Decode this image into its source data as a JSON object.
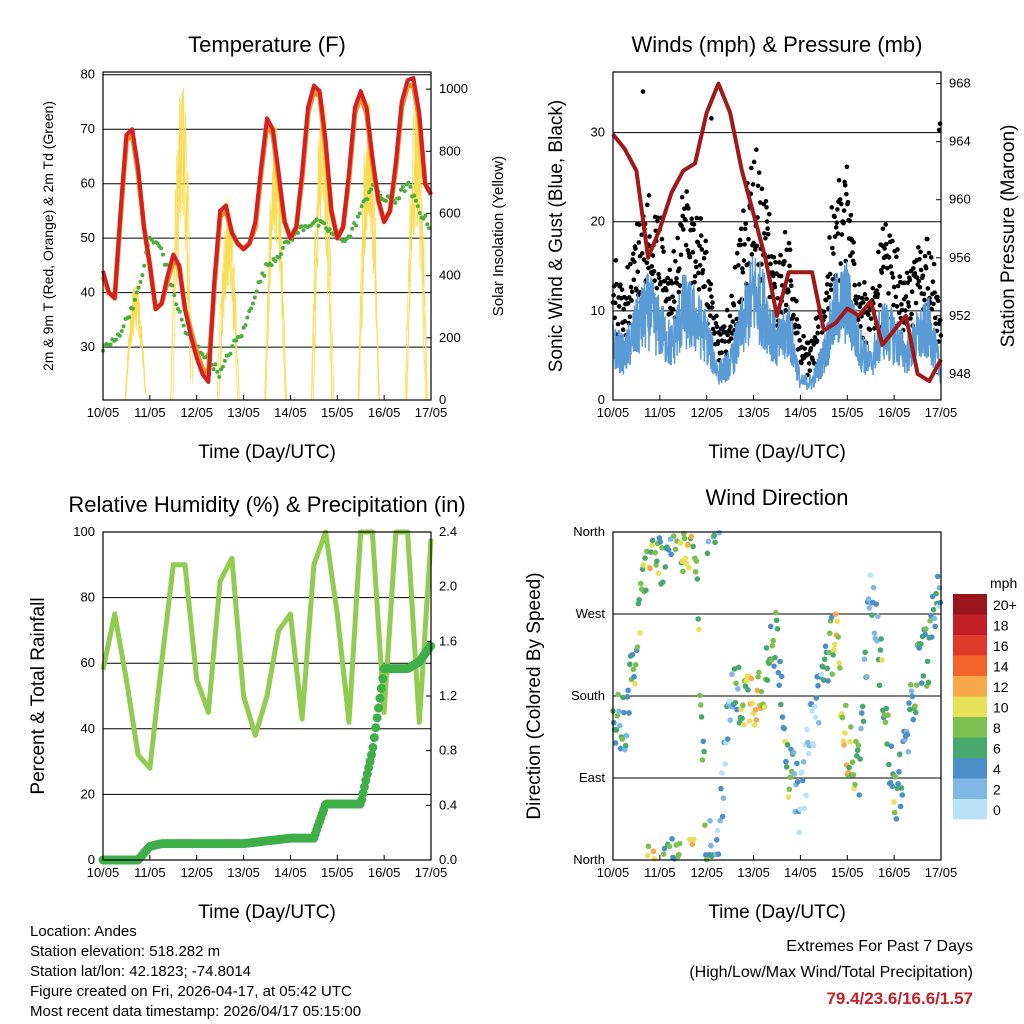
{
  "footer": {
    "location": "Location: Andes",
    "elevation": "Station elevation: 518.282 m",
    "latlon": "Station lat/lon: 42.1823; -74.8014",
    "created": "Figure created on Fri, 2026-04-17, at 05:42 UTC",
    "recent": "Most recent data timestamp: 2026/04/17 05:15:00",
    "extremes_title": "Extremes For Past 7 Days",
    "extremes_sub": "(High/Low/Max Wind/Total Precipitation)",
    "extremes_values": "79.4/23.6/16.6/1.57",
    "extremes_color": "#c8202a"
  },
  "chart_data": [
    {
      "type": "line",
      "title": "Temperature (F)",
      "xlabel": "Time (Day/UTC)",
      "ylabel": "2m & 9m T (Red, Orange) & 2m Td (Green)",
      "y2label": "Solar Insolation (Yellow)",
      "xticks": [
        "10/05",
        "11/05",
        "12/05",
        "13/05",
        "14/05",
        "15/05",
        "16/05",
        "17/05"
      ],
      "xlim": [
        0,
        7
      ],
      "ylim": [
        20.3,
        80.5
      ],
      "yticks": [
        30,
        40,
        50,
        60,
        70,
        80
      ],
      "y2lim": [
        0,
        1055
      ],
      "y2ticks": [
        0,
        200,
        400,
        600,
        800,
        1000
      ],
      "series": [
        {
          "name": "2m T",
          "color": "#d42020",
          "dt": 0.125,
          "values": [
            44,
            40,
            39,
            55,
            69,
            70,
            63,
            52,
            45,
            37,
            38,
            43,
            47,
            45,
            37,
            32,
            28,
            25,
            23.6,
            42,
            55,
            56,
            51,
            49,
            48,
            49,
            53,
            63,
            72,
            70,
            62,
            53,
            50,
            52,
            62,
            74,
            78,
            77,
            68,
            55,
            50,
            52,
            62,
            74,
            77,
            74,
            65,
            57,
            53,
            55,
            64,
            75,
            79,
            79.4,
            73,
            60,
            58
          ]
        },
        {
          "name": "9m T",
          "color": "#f08a24",
          "dt": 0.125,
          "values": [
            43,
            40,
            39,
            54,
            68,
            69,
            62,
            52,
            45,
            37,
            38,
            42,
            46,
            45,
            37,
            33,
            29,
            26,
            25,
            41,
            54,
            55,
            51,
            49,
            48,
            49,
            52,
            62,
            71,
            69,
            61,
            53,
            50,
            52,
            61,
            73,
            77,
            76,
            67,
            55,
            50,
            52,
            61,
            73,
            76,
            73,
            64,
            57,
            53,
            55,
            63,
            74,
            78,
            78,
            72,
            60,
            58
          ]
        },
        {
          "name": "2m Td",
          "color": "#4aae3c",
          "dt": 0.25,
          "values": [
            30,
            31,
            35,
            40,
            50,
            48,
            40,
            33,
            30,
            28,
            25,
            30,
            33,
            40,
            45,
            47,
            50,
            52,
            53,
            52,
            50,
            50,
            55,
            60,
            57,
            57,
            60,
            55,
            52,
            57
          ]
        },
        {
          "name": "Solar Insolation",
          "color": "#f7dc50",
          "axis": "right",
          "daily_peaks": [
            400,
            1050,
            650,
            900,
            1000,
            1000,
            1000
          ]
        }
      ]
    },
    {
      "type": "scatter",
      "title": "Winds (mph) & Pressure (mb)",
      "xlabel": "Time (Day/UTC)",
      "ylabel": "Sonic Wind & Gust (Blue, Black)",
      "y2label": "Station Pressure (Maroon)",
      "xticks": [
        "10/05",
        "11/05",
        "12/05",
        "13/05",
        "14/05",
        "15/05",
        "16/05",
        "17/05"
      ],
      "xlim": [
        0,
        7
      ],
      "ylim": [
        0,
        36.8
      ],
      "yticks": [
        0,
        10,
        20,
        30
      ],
      "y2lim": [
        946.2,
        968.8
      ],
      "y2ticks": [
        948,
        952,
        956,
        960,
        964,
        968
      ],
      "series": [
        {
          "name": "Sonic Wind",
          "color": "#5b9bd5",
          "dt": 0.25,
          "values": [
            6,
            5,
            8,
            10,
            8,
            6,
            10,
            9,
            7,
            3,
            4,
            8,
            12,
            10,
            6,
            8,
            2,
            2,
            5,
            10,
            11,
            6,
            4,
            8,
            7,
            5,
            7,
            8,
            3
          ]
        },
        {
          "name": "Gust",
          "color": "#000000",
          "derived_from": "Sonic Wind"
        },
        {
          "name": "Station Pressure",
          "color": "#a01818",
          "axis": "right",
          "dt": 0.25,
          "values": [
            964.5,
            963.5,
            962,
            956,
            958,
            960.5,
            962,
            962.5,
            966,
            968,
            966,
            962,
            959,
            956,
            952,
            955,
            955,
            955,
            951,
            951.5,
            952.5,
            952,
            953,
            950,
            951,
            952,
            948,
            947.5,
            949
          ]
        }
      ]
    },
    {
      "type": "line",
      "title": "Relative Humidity (%) & Precipitation (in)",
      "xlabel": "Time (Day/UTC)",
      "ylabel": "Percent & Total Rainfall",
      "xticks": [
        "10/05",
        "11/05",
        "12/05",
        "13/05",
        "14/05",
        "15/05",
        "16/05",
        "17/05"
      ],
      "xlim": [
        0,
        7
      ],
      "ylim": [
        0,
        100
      ],
      "yticks": [
        0,
        20,
        40,
        60,
        80,
        100
      ],
      "y2lim": [
        0,
        2.4
      ],
      "y2ticks": [
        "0.0",
        "0.4",
        "0.8",
        "1.2",
        "1.6",
        "2.0",
        "2.4"
      ],
      "series": [
        {
          "name": "Relative Humidity",
          "color": "#8fcc4f",
          "dt": 0.25,
          "values": [
            58,
            75,
            55,
            32,
            28,
            60,
            90,
            90,
            55,
            45,
            85,
            92,
            50,
            38,
            50,
            70,
            75,
            43,
            90,
            100,
            75,
            42,
            100,
            100,
            45,
            100,
            100,
            42,
            98
          ]
        },
        {
          "name": "Total Precipitation",
          "color": "#3fae49",
          "axis": "right",
          "dt": 0.25,
          "values": [
            0,
            0,
            0,
            0,
            0.1,
            0.12,
            0.12,
            0.12,
            0.12,
            0.12,
            0.12,
            0.12,
            0.12,
            0.13,
            0.14,
            0.15,
            0.16,
            0.16,
            0.16,
            0.41,
            0.41,
            0.41,
            0.41,
            0.8,
            1.4,
            1.4,
            1.4,
            1.45,
            1.57
          ]
        }
      ]
    },
    {
      "type": "scatter",
      "title": "Wind Direction",
      "xlabel": "Time (Day/UTC)",
      "ylabel": "Direction (Colored By Speed)",
      "xticks": [
        "10/05",
        "11/05",
        "12/05",
        "13/05",
        "14/05",
        "15/05",
        "16/05",
        "17/05"
      ],
      "xlim": [
        0,
        7
      ],
      "ylim": [
        0,
        360
      ],
      "yticks": [
        "North",
        "East",
        "South",
        "West",
        "North"
      ],
      "series": [
        {
          "name": "Wind Direction",
          "dt": 0.25,
          "values": [
            160,
            150,
            230,
            350,
            330,
            350,
            350,
            355,
            10,
            20,
            180,
            180,
            180,
            200,
            250,
            100,
            60,
            150,
            210,
            250,
            120,
            100,
            300,
            200,
            60,
            120,
            210,
            230,
            320
          ]
        }
      ],
      "legend": {
        "title": "mph",
        "labels": [
          "20+",
          "18",
          "16",
          "14",
          "12",
          "10",
          "8",
          "6",
          "4",
          "2",
          "0"
        ],
        "colors": [
          "#98151b",
          "#c21f26",
          "#e03a2a",
          "#f26429",
          "#f8a849",
          "#e9e05a",
          "#7cc050",
          "#47a86c",
          "#4a8fc8",
          "#7fb8e4",
          "#b8e2f6"
        ],
        "placement": "right"
      }
    }
  ]
}
